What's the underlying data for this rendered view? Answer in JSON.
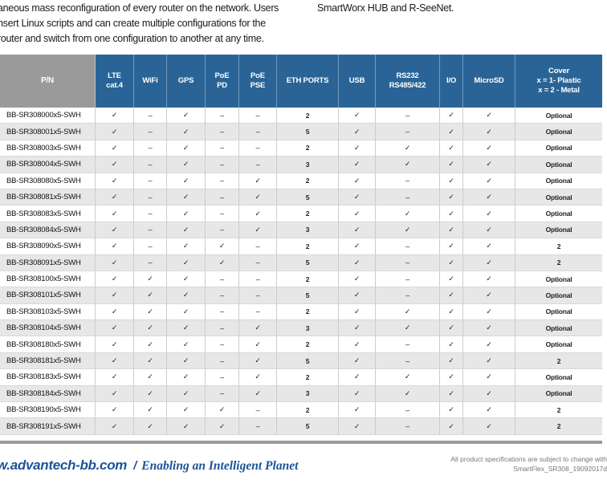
{
  "intro": {
    "left_lines": [
      "aneous mass reconfiguration of every router on the network. Users",
      "nsert Linux scripts and can create multiple configurations for the",
      "router and switch from one configuration to another at any time."
    ],
    "right_line": "SmartWorx HUB and R-SeeNet."
  },
  "table": {
    "columns": [
      {
        "id": "pn",
        "label_lines": [
          "P/N"
        ]
      },
      {
        "id": "lte",
        "label_lines": [
          "LTE",
          "cat.4"
        ]
      },
      {
        "id": "wifi",
        "label_lines": [
          "WiFi"
        ]
      },
      {
        "id": "gps",
        "label_lines": [
          "GPS"
        ]
      },
      {
        "id": "poepd",
        "label_lines": [
          "PoE",
          "PD"
        ]
      },
      {
        "id": "poepse",
        "label_lines": [
          "PoE",
          "PSE"
        ]
      },
      {
        "id": "eth",
        "label_lines": [
          "ETH PORTS"
        ]
      },
      {
        "id": "usb",
        "label_lines": [
          "USB"
        ]
      },
      {
        "id": "rs232",
        "label_lines": [
          "RS232",
          "RS485/422"
        ]
      },
      {
        "id": "io",
        "label_lines": [
          "I/O"
        ]
      },
      {
        "id": "microsd",
        "label_lines": [
          "MicroSD"
        ]
      },
      {
        "id": "cover",
        "label_lines": [
          "Cover",
          "x = 1- Plastic",
          "x = 2 - Metal"
        ]
      }
    ],
    "rows": [
      [
        "BB-SR308000x5-SWH",
        "✓",
        "–",
        "✓",
        "–",
        "–",
        "2",
        "✓",
        "–",
        "✓",
        "✓",
        "Optional"
      ],
      [
        "BB-SR308001x5-SWH",
        "✓",
        "–",
        "✓",
        "–",
        "–",
        "5",
        "✓",
        "–",
        "✓",
        "✓",
        "Optional"
      ],
      [
        "BB-SR308003x5-SWH",
        "✓",
        "–",
        "✓",
        "–",
        "–",
        "2",
        "✓",
        "✓",
        "✓",
        "✓",
        "Optional"
      ],
      [
        "BB-SR308004x5-SWH",
        "✓",
        "–",
        "✓",
        "–",
        "–",
        "3",
        "✓",
        "✓",
        "✓",
        "✓",
        "Optional"
      ],
      [
        "BB-SR308080x5-SWH",
        "✓",
        "–",
        "✓",
        "–",
        "✓",
        "2",
        "✓",
        "–",
        "✓",
        "✓",
        "Optional"
      ],
      [
        "BB-SR308081x5-SWH",
        "✓",
        "–",
        "✓",
        "–",
        "✓",
        "5",
        "✓",
        "–",
        "✓",
        "✓",
        "Optional"
      ],
      [
        "BB-SR308083x5-SWH",
        "✓",
        "–",
        "✓",
        "–",
        "✓",
        "2",
        "✓",
        "✓",
        "✓",
        "✓",
        "Optional"
      ],
      [
        "BB-SR308084x5-SWH",
        "✓",
        "–",
        "✓",
        "–",
        "✓",
        "3",
        "✓",
        "✓",
        "✓",
        "✓",
        "Optional"
      ],
      [
        "BB-SR308090x5-SWH",
        "✓",
        "–",
        "✓",
        "✓",
        "–",
        "2",
        "✓",
        "–",
        "✓",
        "✓",
        "2"
      ],
      [
        "BB-SR308091x5-SWH",
        "✓",
        "–",
        "✓",
        "✓",
        "–",
        "5",
        "✓",
        "–",
        "✓",
        "✓",
        "2"
      ],
      [
        "BB-SR308100x5-SWH",
        "✓",
        "✓",
        "✓",
        "–",
        "–",
        "2",
        "✓",
        "–",
        "✓",
        "✓",
        "Optional"
      ],
      [
        "BB-SR308101x5-SWH",
        "✓",
        "✓",
        "✓",
        "–",
        "–",
        "5",
        "✓",
        "–",
        "✓",
        "✓",
        "Optional"
      ],
      [
        "BB-SR308103x5-SWH",
        "✓",
        "✓",
        "✓",
        "–",
        "–",
        "2",
        "✓",
        "✓",
        "✓",
        "✓",
        "Optional"
      ],
      [
        "BB-SR308104x5-SWH",
        "✓",
        "✓",
        "✓",
        "–",
        "✓",
        "3",
        "✓",
        "✓",
        "✓",
        "✓",
        "Optional"
      ],
      [
        "BB-SR308180x5-SWH",
        "✓",
        "✓",
        "✓",
        "–",
        "✓",
        "2",
        "✓",
        "–",
        "✓",
        "✓",
        "Optional"
      ],
      [
        "BB-SR308181x5-SWH",
        "✓",
        "✓",
        "✓",
        "–",
        "✓",
        "5",
        "✓",
        "–",
        "✓",
        "✓",
        "2"
      ],
      [
        "BB-SR308183x5-SWH",
        "✓",
        "✓",
        "✓",
        "–",
        "✓",
        "2",
        "✓",
        "✓",
        "✓",
        "✓",
        "Optional"
      ],
      [
        "BB-SR308184x5-SWH",
        "✓",
        "✓",
        "✓",
        "–",
        "✓",
        "3",
        "✓",
        "✓",
        "✓",
        "✓",
        "Optional"
      ],
      [
        "BB-SR308190x5-SWH",
        "✓",
        "✓",
        "✓",
        "✓",
        "–",
        "2",
        "✓",
        "–",
        "✓",
        "✓",
        "2"
      ],
      [
        "BB-SR308191x5-SWH",
        "✓",
        "✓",
        "✓",
        "✓",
        "–",
        "5",
        "✓",
        "–",
        "✓",
        "✓",
        "2"
      ]
    ]
  },
  "footer": {
    "site": "w.advantech-bb.com",
    "separator": "/",
    "tagline": "Enabling an Intelligent Planet",
    "note_line1": "All product specifications are subject to change with",
    "note_line2": "SmartFlex_SR308_19092017d"
  },
  "colors": {
    "header_blue": "#2a6496",
    "header_gray": "#9a9a9a",
    "row_stripe": "#e7e7e7",
    "cell_border": "#cccccc",
    "footer_blue": "#1d5398",
    "note_gray": "#777777"
  }
}
